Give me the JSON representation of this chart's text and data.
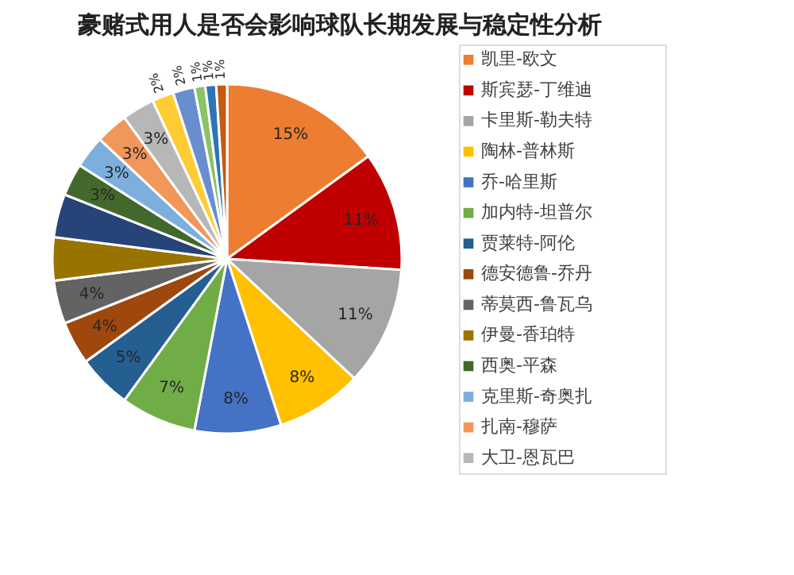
{
  "chart_data": {
    "type": "pie",
    "title": "豪赌式用人是否会影响球队长期发展与稳定性分析",
    "categories": [
      "凯里-欧文",
      "斯宾瑟-丁维迪",
      "卡里斯-勒夫特",
      "陶林-普林斯",
      "乔-哈里斯",
      "加内特-坦普尔",
      "贾莱特-阿伦",
      "德安德鲁-乔丹",
      "蒂莫西-鲁瓦乌",
      "伊曼-香珀特",
      null,
      "西奥-平森",
      "克里斯-奇奥扎",
      "扎南-穆萨",
      "大卫-恩瓦巴",
      null,
      null,
      null,
      null,
      null
    ],
    "values": [
      15,
      11,
      11,
      8,
      8,
      7,
      5,
      4,
      4,
      4,
      4,
      3,
      3,
      3,
      3,
      2,
      2,
      1,
      1,
      1
    ],
    "value_labels": [
      "15%",
      "11%",
      "11%",
      "8%",
      "8%",
      "7%",
      "5%",
      "4%",
      "4%",
      null,
      null,
      "3%",
      "3%",
      "3%",
      "3%",
      "2%",
      "2%",
      "1%",
      "1%",
      "1%"
    ],
    "colors": [
      "#ed7d31",
      "#c00000",
      "#a5a5a5",
      "#ffc000",
      "#4472c4",
      "#70ad47",
      "#255e91",
      "#9e480e",
      "#636363",
      "#997300",
      "#264478",
      "#43682b",
      "#7cafdd",
      "#f1975a",
      "#b7b7b7",
      "#ffcd33",
      "#698ed0",
      "#8cc168",
      "#2e75b6",
      "#c55a11"
    ],
    "legend": "right"
  }
}
